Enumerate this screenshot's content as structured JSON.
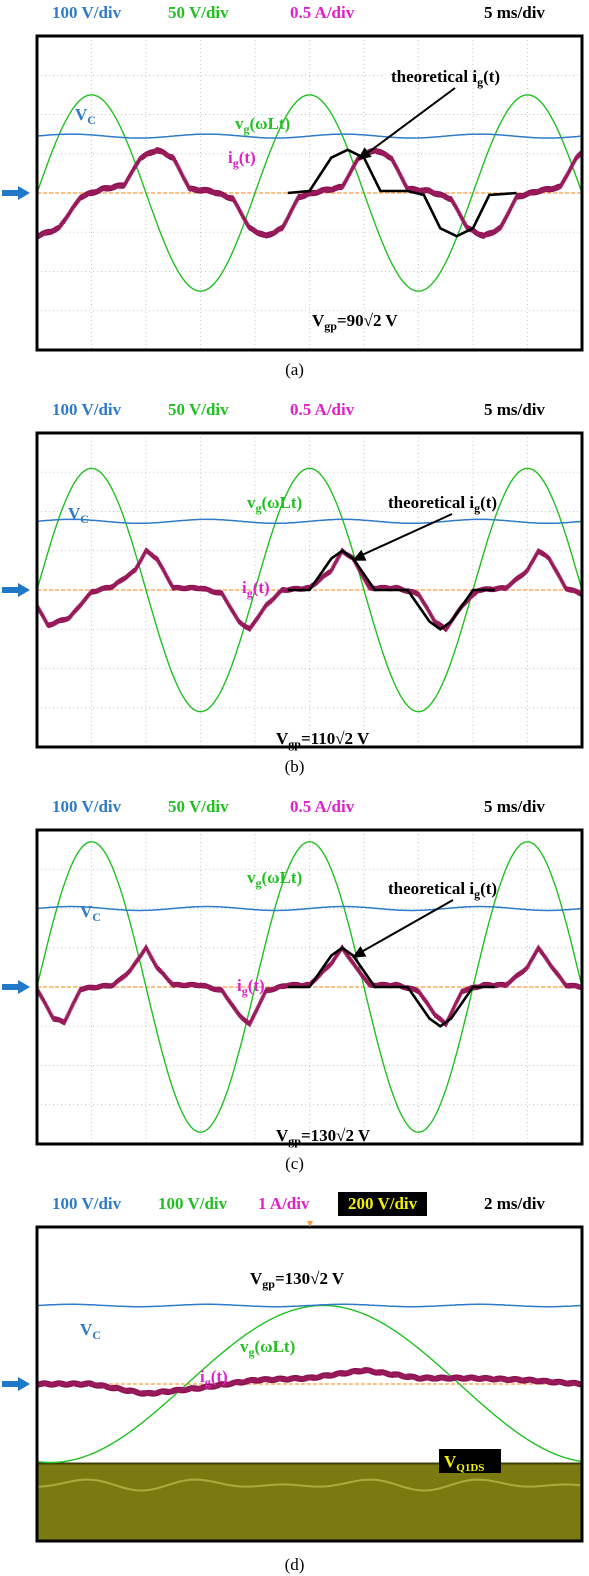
{
  "colors": {
    "vc": "#2e7bc9",
    "vg": "#22c022",
    "ig": "#e020c8",
    "ig_trace": "#8a1050",
    "theory": "#000000",
    "zero_line": "#ff9a3c",
    "arrow": "#1f78c8",
    "vds_label": "#f2f200",
    "vds_fill": "#7a7a10"
  },
  "chart_data": [
    {
      "type": "line",
      "caption": "(a)",
      "scales": [
        "100 V/div",
        "50 V/div",
        "0.5 A/div",
        "5 ms/div"
      ],
      "annotation": "Vgp=90√2 V",
      "theory_label": "theoretical ig(t)",
      "series_labels": {
        "vc": "VC",
        "vg": "vg(ωLt)",
        "ig": "ig(t)"
      },
      "grid": true,
      "x_divisions": 10,
      "y_divisions": 8,
      "time_ms": [
        0,
        50
      ],
      "vg": {
        "amplitude_div": 2.5,
        "period_ms": 20,
        "phase_ms": 20
      },
      "vc": {
        "level_div": 1.45,
        "ripple_div": 0.05
      },
      "ig": {
        "points": [
          [
            0,
            -1.1
          ],
          [
            2,
            -0.9
          ],
          [
            4,
            -0.1
          ],
          [
            6,
            0.1
          ],
          [
            8,
            0.2
          ],
          [
            9.5,
            0.9
          ],
          [
            11,
            1.1
          ],
          [
            12.5,
            0.9
          ],
          [
            14,
            0.1
          ],
          [
            16,
            0.05
          ],
          [
            18,
            -0.15
          ],
          [
            19.5,
            -0.9
          ],
          [
            21,
            -1.1
          ],
          [
            22.5,
            -0.9
          ],
          [
            24,
            -0.1
          ],
          [
            26,
            0.05
          ],
          [
            28,
            0.15
          ],
          [
            29.5,
            0.9
          ],
          [
            31,
            1.1
          ],
          [
            32.5,
            0.9
          ],
          [
            34,
            0.1
          ],
          [
            36,
            0.05
          ],
          [
            38,
            -0.15
          ],
          [
            39.5,
            -0.9
          ],
          [
            41,
            -1.1
          ],
          [
            42.5,
            -0.9
          ],
          [
            44,
            -0.1
          ],
          [
            46,
            0.05
          ],
          [
            48,
            0.15
          ],
          [
            49.5,
            0.9
          ],
          [
            50,
            1.05
          ]
        ],
        "band_div": 0.18
      },
      "theory": [
        [
          23,
          0
        ],
        [
          25,
          0.05
        ],
        [
          27,
          0.9
        ],
        [
          28.5,
          1.1
        ],
        [
          30,
          0.9
        ],
        [
          31.5,
          0.05
        ],
        [
          34,
          0.05
        ],
        [
          35.5,
          -0.05
        ],
        [
          37,
          -0.9
        ],
        [
          38.5,
          -1.1
        ],
        [
          40,
          -0.9
        ],
        [
          41.5,
          -0.05
        ],
        [
          44,
          0
        ]
      ]
    },
    {
      "type": "line",
      "caption": "(b)",
      "scales": [
        "100 V/div",
        "50 V/div",
        "0.5 A/div",
        "5 ms/div"
      ],
      "annotation": "Vgp=110√2 V",
      "theory_label": "theoretical ig(t)",
      "series_labels": {
        "vc": "VC",
        "vg": "vg(ωLt)",
        "ig": "ig(t)"
      },
      "grid": true,
      "x_divisions": 10,
      "y_divisions": 8,
      "time_ms": [
        0,
        50
      ],
      "vg": {
        "amplitude_div": 3.1,
        "period_ms": 20,
        "phase_ms": 0
      },
      "vc": {
        "level_div": 1.75,
        "ripple_div": 0.05
      },
      "ig": {
        "points": [
          [
            0,
            -0.4
          ],
          [
            1,
            -0.9
          ],
          [
            3,
            -0.7
          ],
          [
            5,
            -0.05
          ],
          [
            7,
            0.1
          ],
          [
            9,
            0.5
          ],
          [
            10,
            1.0
          ],
          [
            11,
            0.8
          ],
          [
            12.5,
            0.05
          ],
          [
            15,
            0.05
          ],
          [
            17,
            -0.1
          ],
          [
            18.5,
            -0.8
          ],
          [
            19.5,
            -1.0
          ],
          [
            21,
            -0.4
          ],
          [
            22.5,
            0.0
          ],
          [
            25,
            0.05
          ],
          [
            27,
            0.5
          ],
          [
            28,
            1.0
          ],
          [
            29,
            0.8
          ],
          [
            30.5,
            0.05
          ],
          [
            33,
            0.05
          ],
          [
            35,
            -0.1
          ],
          [
            36.5,
            -0.8
          ],
          [
            37.5,
            -1.0
          ],
          [
            39,
            -0.4
          ],
          [
            40.5,
            0.0
          ],
          [
            43,
            0.05
          ],
          [
            45,
            0.5
          ],
          [
            46,
            1.0
          ],
          [
            47,
            0.8
          ],
          [
            48.5,
            0.05
          ],
          [
            50,
            -0.1
          ]
        ],
        "band_div": 0.16
      },
      "theory": [
        [
          23,
          0
        ],
        [
          25,
          0
        ],
        [
          27,
          0.8
        ],
        [
          28,
          1.0
        ],
        [
          29,
          0.8
        ],
        [
          31,
          0
        ],
        [
          34,
          0
        ],
        [
          36,
          -0.8
        ],
        [
          37,
          -1.0
        ],
        [
          38,
          -0.8
        ],
        [
          40,
          0
        ],
        [
          42,
          0
        ]
      ]
    },
    {
      "type": "line",
      "caption": "(c)",
      "scales": [
        "100 V/div",
        "50 V/div",
        "0.5 A/div",
        "5 ms/div"
      ],
      "annotation": "Vgp=130√2 V",
      "theory_label": "theoretical ig(t)",
      "series_labels": {
        "vc": "VC",
        "vg": "vg(ωLt)",
        "ig": "ig(t)"
      },
      "grid": true,
      "x_divisions": 10,
      "y_divisions": 8,
      "time_ms": [
        0,
        50
      ],
      "vg": {
        "amplitude_div": 3.7,
        "period_ms": 20,
        "phase_ms": 0
      },
      "vc": {
        "level_div": 2.0,
        "ripple_div": 0.05
      },
      "ig": {
        "points": [
          [
            0,
            -0.05
          ],
          [
            1.5,
            -0.8
          ],
          [
            2.5,
            -0.9
          ],
          [
            4,
            -0.05
          ],
          [
            7,
            0.05
          ],
          [
            8.5,
            0.4
          ],
          [
            10,
            1.0
          ],
          [
            11,
            0.5
          ],
          [
            12.5,
            0.05
          ],
          [
            15,
            0.05
          ],
          [
            17,
            -0.1
          ],
          [
            18.5,
            -0.7
          ],
          [
            19.5,
            -0.95
          ],
          [
            21,
            -0.1
          ],
          [
            23,
            0.05
          ],
          [
            25,
            0.05
          ],
          [
            27,
            0.6
          ],
          [
            28,
            1.0
          ],
          [
            29,
            0.6
          ],
          [
            30.5,
            0.05
          ],
          [
            33,
            0.05
          ],
          [
            35,
            -0.1
          ],
          [
            36.5,
            -0.7
          ],
          [
            37.5,
            -0.95
          ],
          [
            39,
            -0.1
          ],
          [
            41,
            0.05
          ],
          [
            43,
            0.05
          ],
          [
            45,
            0.5
          ],
          [
            46,
            1.0
          ],
          [
            47,
            0.6
          ],
          [
            48.5,
            0.05
          ],
          [
            50,
            0.0
          ]
        ],
        "band_div": 0.16
      },
      "theory": [
        [
          23,
          0
        ],
        [
          25,
          0
        ],
        [
          27,
          0.8
        ],
        [
          28,
          1.0
        ],
        [
          29,
          0.8
        ],
        [
          31,
          0
        ],
        [
          34,
          0
        ],
        [
          36,
          -0.8
        ],
        [
          37,
          -1.0
        ],
        [
          38,
          -0.8
        ],
        [
          40,
          0
        ],
        [
          42,
          0
        ]
      ]
    },
    {
      "type": "line",
      "caption": "(d)",
      "scales": [
        "100 V/div",
        "100 V/div",
        "1 A/div",
        "200 V/div",
        "2 ms/div"
      ],
      "annotation": "Vgp=130√2 V",
      "series_labels": {
        "vc": "VC",
        "vg": "vg(ωLt)",
        "ig": "ig(t)",
        "vds": "VQ1DS"
      },
      "grid": false,
      "x_divisions": 10,
      "y_divisions": 8,
      "time_ms": [
        0,
        20
      ],
      "vg": {
        "amplitude_div": 2.0,
        "period_ms": 20,
        "phase_ms": 5.5
      },
      "vc": {
        "level_div": 2.0,
        "ripple_div": 0.03
      },
      "ig": {
        "points": [
          [
            0,
            0.0
          ],
          [
            2,
            0.0
          ],
          [
            4,
            -0.25
          ],
          [
            6,
            -0.1
          ],
          [
            8,
            0.1
          ],
          [
            10,
            0.15
          ],
          [
            12,
            0.35
          ],
          [
            14,
            0.15
          ],
          [
            16,
            0.15
          ],
          [
            18,
            0.1
          ],
          [
            20,
            0.0
          ]
        ],
        "band_div": 0.18
      },
      "vds": {
        "top_div": -2.0,
        "bottom_div": -4.0
      }
    }
  ]
}
